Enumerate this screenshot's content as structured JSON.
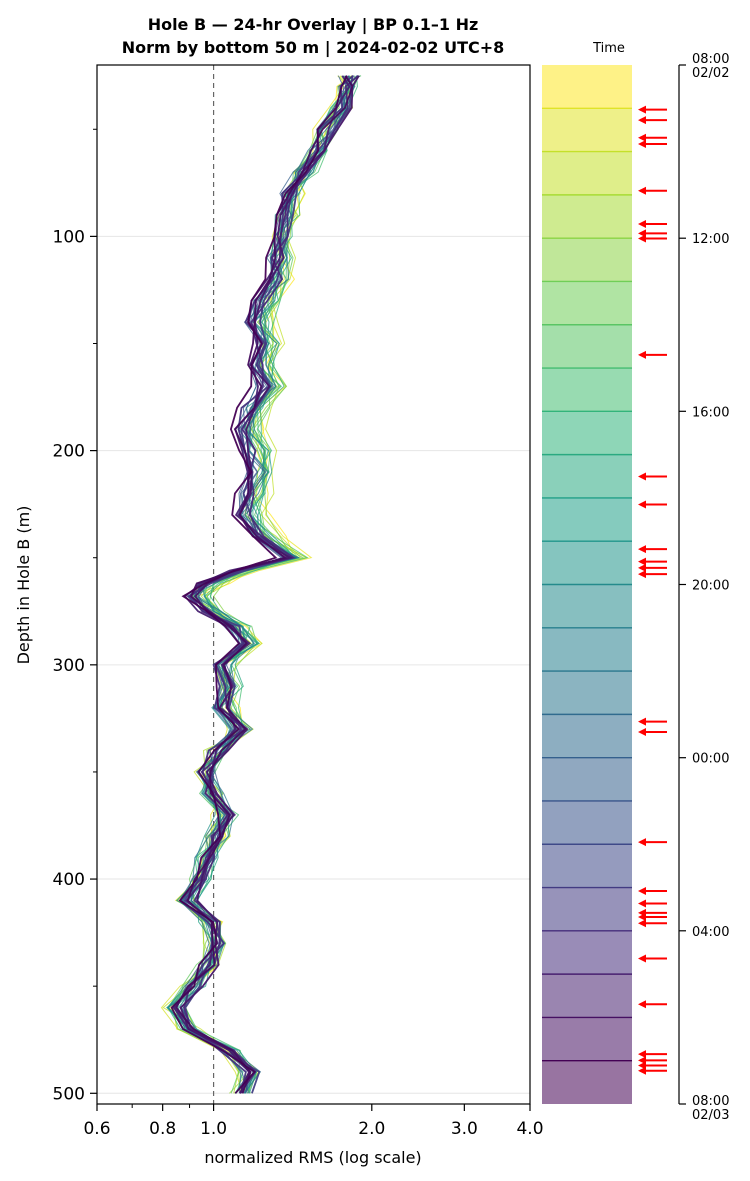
{
  "chart_data": {
    "type": "line",
    "title_line1": "Hole B — 24-hr Overlay  |  BP 0.1–1 Hz",
    "title_line2": "Norm by bottom 50 m  |  2024-02-02 UTC+8",
    "xlabel": "normalized RMS  (log scale)",
    "ylabel": "Depth in Hole B (m)",
    "xscale": "log",
    "xlim": [
      0.6,
      4.0
    ],
    "ylim": [
      505,
      20
    ],
    "xticks": [
      {
        "value": 0.6,
        "label": "0.6"
      },
      {
        "value": 0.8,
        "label": "0.8"
      },
      {
        "value": 1.0,
        "label": "1.0"
      },
      {
        "value": 2.0,
        "label": "2.0"
      },
      {
        "value": 3.0,
        "label": "3.0"
      },
      {
        "value": 4.0,
        "label": "4.0"
      }
    ],
    "yticks": [
      {
        "value": 100,
        "label": "100"
      },
      {
        "value": 200,
        "label": "200"
      },
      {
        "value": 300,
        "label": "300"
      },
      {
        "value": 400,
        "label": "400"
      },
      {
        "value": 500,
        "label": "500"
      }
    ],
    "reference_line_x": 1.0,
    "grid": true,
    "colormap": "viridis",
    "base_profile": {
      "depth": [
        25,
        30,
        40,
        50,
        60,
        70,
        80,
        90,
        100,
        110,
        120,
        130,
        140,
        150,
        160,
        170,
        180,
        190,
        200,
        210,
        220,
        230,
        240,
        250,
        256,
        262,
        268,
        275,
        282,
        290,
        300,
        310,
        320,
        330,
        340,
        350,
        360,
        370,
        380,
        390,
        400,
        410,
        420,
        430,
        440,
        450,
        460,
        470,
        480,
        490,
        500
      ],
      "rms": [
        1.82,
        1.8,
        1.76,
        1.65,
        1.58,
        1.48,
        1.4,
        1.36,
        1.33,
        1.31,
        1.3,
        1.22,
        1.18,
        1.22,
        1.19,
        1.23,
        1.16,
        1.12,
        1.16,
        1.18,
        1.14,
        1.12,
        1.2,
        1.37,
        1.1,
        0.95,
        0.9,
        0.96,
        1.08,
        1.15,
        1.03,
        1.06,
        1.04,
        1.13,
        1.02,
        0.97,
        1.0,
        1.06,
        1.02,
        0.97,
        0.95,
        0.9,
        0.99,
        1.02,
        0.98,
        0.92,
        0.85,
        0.9,
        1.07,
        1.18,
        1.14
      ]
    },
    "colorbar": {
      "label": "Time",
      "ticks": [
        {
          "label": "08:00",
          "sublabel": "02/02",
          "frac": 0.0
        },
        {
          "label": "12:00",
          "sublabel": "",
          "frac": 0.1667
        },
        {
          "label": "16:00",
          "sublabel": "",
          "frac": 0.3333
        },
        {
          "label": "20:00",
          "sublabel": "",
          "frac": 0.5
        },
        {
          "label": "00:00",
          "sublabel": "",
          "frac": 0.6667
        },
        {
          "label": "04:00",
          "sublabel": "",
          "frac": 0.8333
        },
        {
          "label": "08:00",
          "sublabel": "02/03",
          "frac": 1.0
        }
      ],
      "bands": 24,
      "arrow_fracs": [
        0.043,
        0.053,
        0.07,
        0.076,
        0.121,
        0.153,
        0.162,
        0.167,
        0.279,
        0.396,
        0.423,
        0.466,
        0.478,
        0.484,
        0.49,
        0.632,
        0.642,
        0.748,
        0.795,
        0.807,
        0.816,
        0.82,
        0.826,
        0.86,
        0.904,
        0.952,
        0.958,
        0.963,
        0.968
      ],
      "arrow_color": "#ff0000"
    }
  }
}
